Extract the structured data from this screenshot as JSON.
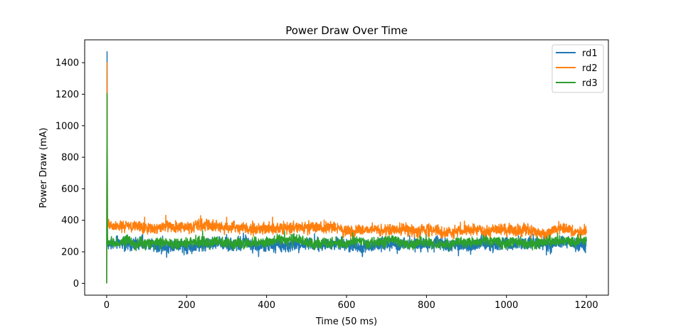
{
  "chart_data": {
    "type": "line",
    "title": "Power Draw Over Time",
    "xlabel": "Time (50 ms)",
    "ylabel": "Power Draw (mA)",
    "xlim": [
      -55,
      1255
    ],
    "ylim": [
      -75,
      1545
    ],
    "xticks": [
      0,
      200,
      400,
      600,
      800,
      1000,
      1200
    ],
    "yticks": [
      0,
      200,
      400,
      600,
      800,
      1000,
      1200,
      1400
    ],
    "grid": false,
    "legend_position": "top-right",
    "x_range": [
      0,
      1200
    ],
    "series": [
      {
        "name": "rd1",
        "color": "#1f77b4",
        "peak": 1470,
        "mean_start": 245,
        "mean_end": 248,
        "noise": 20,
        "spikes": [
          {
            "x": 90,
            "y": 310
          },
          {
            "x": 140,
            "y": 300
          },
          {
            "x": 300,
            "y": 310
          },
          {
            "x": 520,
            "y": 315
          },
          {
            "x": 770,
            "y": 310
          }
        ],
        "dips": [
          {
            "x": 150,
            "y": 165
          },
          {
            "x": 380,
            "y": 170
          },
          {
            "x": 880,
            "y": 175
          },
          {
            "x": 1100,
            "y": 180
          }
        ]
      },
      {
        "name": "rd2",
        "color": "#ff7f0e",
        "peak": 1400,
        "mean_start": 365,
        "mean_end": 325,
        "noise": 18,
        "spikes": [
          {
            "x": 95,
            "y": 420
          },
          {
            "x": 148,
            "y": 432
          },
          {
            "x": 235,
            "y": 430
          },
          {
            "x": 300,
            "y": 420
          },
          {
            "x": 415,
            "y": 420
          },
          {
            "x": 895,
            "y": 395
          },
          {
            "x": 1195,
            "y": 375
          }
        ],
        "dips": [
          {
            "x": 110,
            "y": 320
          },
          {
            "x": 840,
            "y": 290
          },
          {
            "x": 1180,
            "y": 290
          }
        ]
      },
      {
        "name": "rd3",
        "color": "#2ca02c",
        "peak": 1205,
        "mean_start": 258,
        "mean_end": 262,
        "noise": 16,
        "spikes": [
          {
            "x": 240,
            "y": 335
          },
          {
            "x": 445,
            "y": 330
          },
          {
            "x": 615,
            "y": 320
          },
          {
            "x": 1185,
            "y": 310
          }
        ],
        "dips": [
          {
            "x": 120,
            "y": 215
          },
          {
            "x": 560,
            "y": 220
          }
        ]
      }
    ]
  }
}
